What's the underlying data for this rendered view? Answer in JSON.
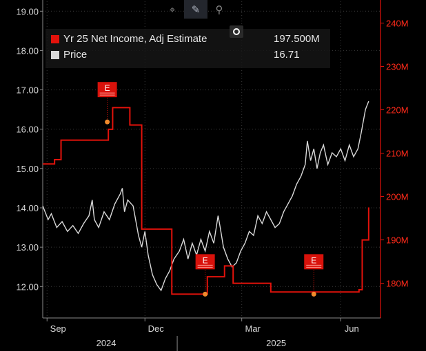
{
  "toolbar": {
    "tools": [
      {
        "name": "crosshair",
        "glyph": "⌖"
      },
      {
        "name": "draw",
        "glyph": "✎"
      },
      {
        "name": "zoom",
        "glyph": "⚲"
      }
    ]
  },
  "legend": [
    {
      "name": "Yr 25 Net Income, Adj Estimate",
      "value": "197.500M",
      "color": "#e3120b"
    },
    {
      "name": "Price",
      "value": "16.71",
      "color": "#d9d9d9"
    }
  ],
  "chart_data": {
    "type": "line",
    "x_range": [
      "2024-08-28",
      "2025-07-08"
    ],
    "x_ticks": [
      {
        "label": "Sep",
        "date": "2024-09-01"
      },
      {
        "label": "Dec",
        "date": "2024-12-01"
      },
      {
        "label": "Mar",
        "date": "2025-03-01"
      },
      {
        "label": "Jun",
        "date": "2025-06-01"
      }
    ],
    "year_labels": [
      {
        "label": "2024",
        "date": "2024-10-26"
      },
      {
        "label": "2025",
        "date": "2025-04-02"
      }
    ],
    "year_divider_date": "2024-12-31",
    "y_left": {
      "min": 11.2,
      "max": 19.25,
      "ticks": [
        12,
        13,
        14,
        15,
        16,
        17,
        18,
        19
      ],
      "tick_labels": [
        "12.00",
        "13.00",
        "14.00",
        "15.00",
        "16.00",
        "17.00",
        "18.00",
        "19.00"
      ]
    },
    "y_right": {
      "min": 172,
      "max": 245,
      "ticks": [
        180,
        190,
        200,
        210,
        220,
        230,
        240
      ],
      "tick_labels": [
        "180M",
        "190M",
        "200M",
        "210M",
        "220M",
        "230M",
        "240M"
      ]
    },
    "series": [
      {
        "name": "Price",
        "axis": "left",
        "color": "#d9d9d9",
        "points": [
          [
            "2024-08-28",
            14.05
          ],
          [
            "2024-09-02",
            13.7
          ],
          [
            "2024-09-05",
            13.85
          ],
          [
            "2024-09-10",
            13.5
          ],
          [
            "2024-09-15",
            13.65
          ],
          [
            "2024-09-20",
            13.4
          ],
          [
            "2024-09-25",
            13.55
          ],
          [
            "2024-09-30",
            13.35
          ],
          [
            "2024-10-05",
            13.6
          ],
          [
            "2024-10-10",
            13.8
          ],
          [
            "2024-10-13",
            14.2
          ],
          [
            "2024-10-15",
            13.7
          ],
          [
            "2024-10-19",
            13.5
          ],
          [
            "2024-10-24",
            13.9
          ],
          [
            "2024-10-29",
            13.7
          ],
          [
            "2024-11-03",
            14.1
          ],
          [
            "2024-11-08",
            14.35
          ],
          [
            "2024-11-10",
            14.5
          ],
          [
            "2024-11-12",
            13.9
          ],
          [
            "2024-11-15",
            14.2
          ],
          [
            "2024-11-20",
            14.05
          ],
          [
            "2024-11-25",
            13.3
          ],
          [
            "2024-11-28",
            13.0
          ],
          [
            "2024-12-01",
            13.4
          ],
          [
            "2024-12-04",
            12.8
          ],
          [
            "2024-12-08",
            12.3
          ],
          [
            "2024-12-12",
            12.05
          ],
          [
            "2024-12-16",
            11.9
          ],
          [
            "2024-12-20",
            12.2
          ],
          [
            "2024-12-24",
            12.4
          ],
          [
            "2024-12-28",
            12.7
          ],
          [
            "2025-01-02",
            12.9
          ],
          [
            "2025-01-06",
            13.2
          ],
          [
            "2025-01-10",
            12.7
          ],
          [
            "2025-01-14",
            13.1
          ],
          [
            "2025-01-18",
            12.8
          ],
          [
            "2025-01-22",
            13.2
          ],
          [
            "2025-01-26",
            12.9
          ],
          [
            "2025-01-30",
            13.4
          ],
          [
            "2025-02-03",
            13.1
          ],
          [
            "2025-02-07",
            13.8
          ],
          [
            "2025-02-09",
            13.5
          ],
          [
            "2025-02-12",
            13.0
          ],
          [
            "2025-02-16",
            12.7
          ],
          [
            "2025-02-20",
            12.5
          ],
          [
            "2025-02-24",
            12.6
          ],
          [
            "2025-02-28",
            12.9
          ],
          [
            "2025-03-04",
            13.1
          ],
          [
            "2025-03-08",
            13.4
          ],
          [
            "2025-03-12",
            13.3
          ],
          [
            "2025-03-16",
            13.8
          ],
          [
            "2025-03-20",
            13.6
          ],
          [
            "2025-03-24",
            13.9
          ],
          [
            "2025-03-28",
            13.7
          ],
          [
            "2025-04-01",
            13.5
          ],
          [
            "2025-04-05",
            13.6
          ],
          [
            "2025-04-09",
            13.9
          ],
          [
            "2025-04-13",
            14.1
          ],
          [
            "2025-04-17",
            14.3
          ],
          [
            "2025-04-21",
            14.6
          ],
          [
            "2025-04-25",
            14.8
          ],
          [
            "2025-04-29",
            15.1
          ],
          [
            "2025-05-01",
            15.7
          ],
          [
            "2025-05-04",
            15.2
          ],
          [
            "2025-05-07",
            15.5
          ],
          [
            "2025-05-10",
            15.0
          ],
          [
            "2025-05-13",
            15.4
          ],
          [
            "2025-05-16",
            15.6
          ],
          [
            "2025-05-20",
            15.1
          ],
          [
            "2025-05-24",
            15.4
          ],
          [
            "2025-05-28",
            15.3
          ],
          [
            "2025-06-01",
            15.5
          ],
          [
            "2025-06-05",
            15.2
          ],
          [
            "2025-06-09",
            15.6
          ],
          [
            "2025-06-13",
            15.3
          ],
          [
            "2025-06-17",
            15.5
          ],
          [
            "2025-06-20",
            15.9
          ],
          [
            "2025-06-24",
            16.5
          ],
          [
            "2025-06-27",
            16.71
          ]
        ]
      },
      {
        "name": "Yr 25 Net Income, Adj Estimate",
        "axis": "right",
        "color": "#e3120b",
        "step": true,
        "points": [
          [
            "2024-08-28",
            207.5
          ],
          [
            "2024-09-08",
            208.5
          ],
          [
            "2024-09-14",
            213.0
          ],
          [
            "2024-10-28",
            215.5
          ],
          [
            "2024-11-01",
            220.5
          ],
          [
            "2024-11-17",
            216.5
          ],
          [
            "2024-11-28",
            192.5
          ],
          [
            "2024-12-26",
            177.5
          ],
          [
            "2025-01-28",
            181.5
          ],
          [
            "2025-02-13",
            184.0
          ],
          [
            "2025-02-21",
            180.0
          ],
          [
            "2025-03-28",
            178.0
          ],
          [
            "2025-06-15",
            178.0
          ],
          [
            "2025-06-18",
            178.5
          ],
          [
            "2025-06-21",
            190.0
          ],
          [
            "2025-06-27",
            197.5
          ]
        ]
      }
    ],
    "estimate_markers": [
      {
        "label": "E",
        "date": "2024-10-27",
        "value": 217.2
      },
      {
        "label": "E",
        "date": "2025-01-26",
        "value": 177.5
      },
      {
        "label": "E",
        "date": "2025-05-07",
        "value": 177.5
      }
    ]
  }
}
